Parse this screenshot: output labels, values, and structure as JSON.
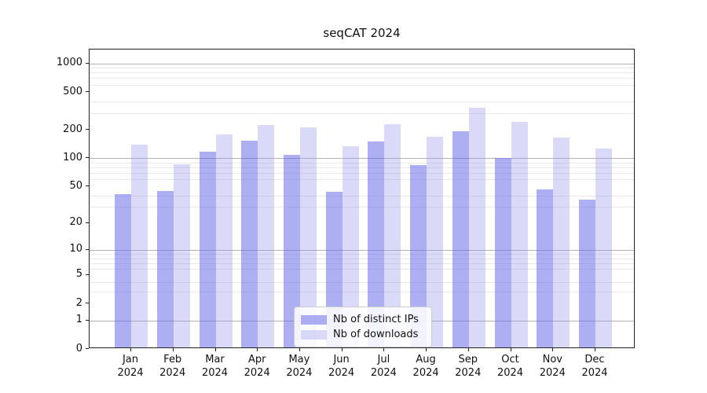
{
  "title": "seqCAT 2024",
  "chart_data": {
    "type": "bar",
    "title": "seqCAT 2024",
    "categories": [
      "Jan",
      "Feb",
      "Mar",
      "Apr",
      "May",
      "Jun",
      "Jul",
      "Aug",
      "Sep",
      "Oct",
      "Nov",
      "Dec"
    ],
    "x_year_label": "2024",
    "series": [
      {
        "name": "Nb of distinct IPs",
        "color": "rgba(100,100,232,0.52)",
        "solid_color": "#a9a9f0",
        "values": [
          40,
          43,
          112,
          148,
          104,
          42,
          145,
          81,
          185,
          96,
          45,
          35
        ]
      },
      {
        "name": "Nb of downloads",
        "color": "rgba(150,150,235,0.35)",
        "solid_color": "#dcdcf8",
        "values": [
          135,
          83,
          172,
          218,
          206,
          128,
          222,
          162,
          330,
          235,
          160,
          122
        ]
      }
    ],
    "xlabel": "",
    "ylabel": "",
    "yscale": "log1p",
    "ylim": [
      0,
      1400
    ],
    "yticks": [
      0,
      1,
      2,
      5,
      10,
      20,
      50,
      100,
      200,
      500,
      1000
    ],
    "grid": true,
    "gridlines": {
      "major": [
        1,
        10,
        100,
        1000
      ],
      "minor": [
        3,
        4,
        6,
        7,
        8,
        9,
        30,
        40,
        60,
        70,
        80,
        90,
        300,
        400,
        600,
        700,
        800,
        900
      ],
      "major_color": "#b3b3b3",
      "minor_color": "#e9e9e9"
    },
    "legend": {
      "position": "lower center",
      "entries": [
        "Nb of distinct IPs",
        "Nb of downloads"
      ]
    }
  },
  "colors": {
    "background": "#ffffff",
    "spine": "#222222",
    "tick_label": "#111111",
    "legend_border": "#cccccc",
    "legend_background": "rgba(255,255,255,0.85)"
  }
}
